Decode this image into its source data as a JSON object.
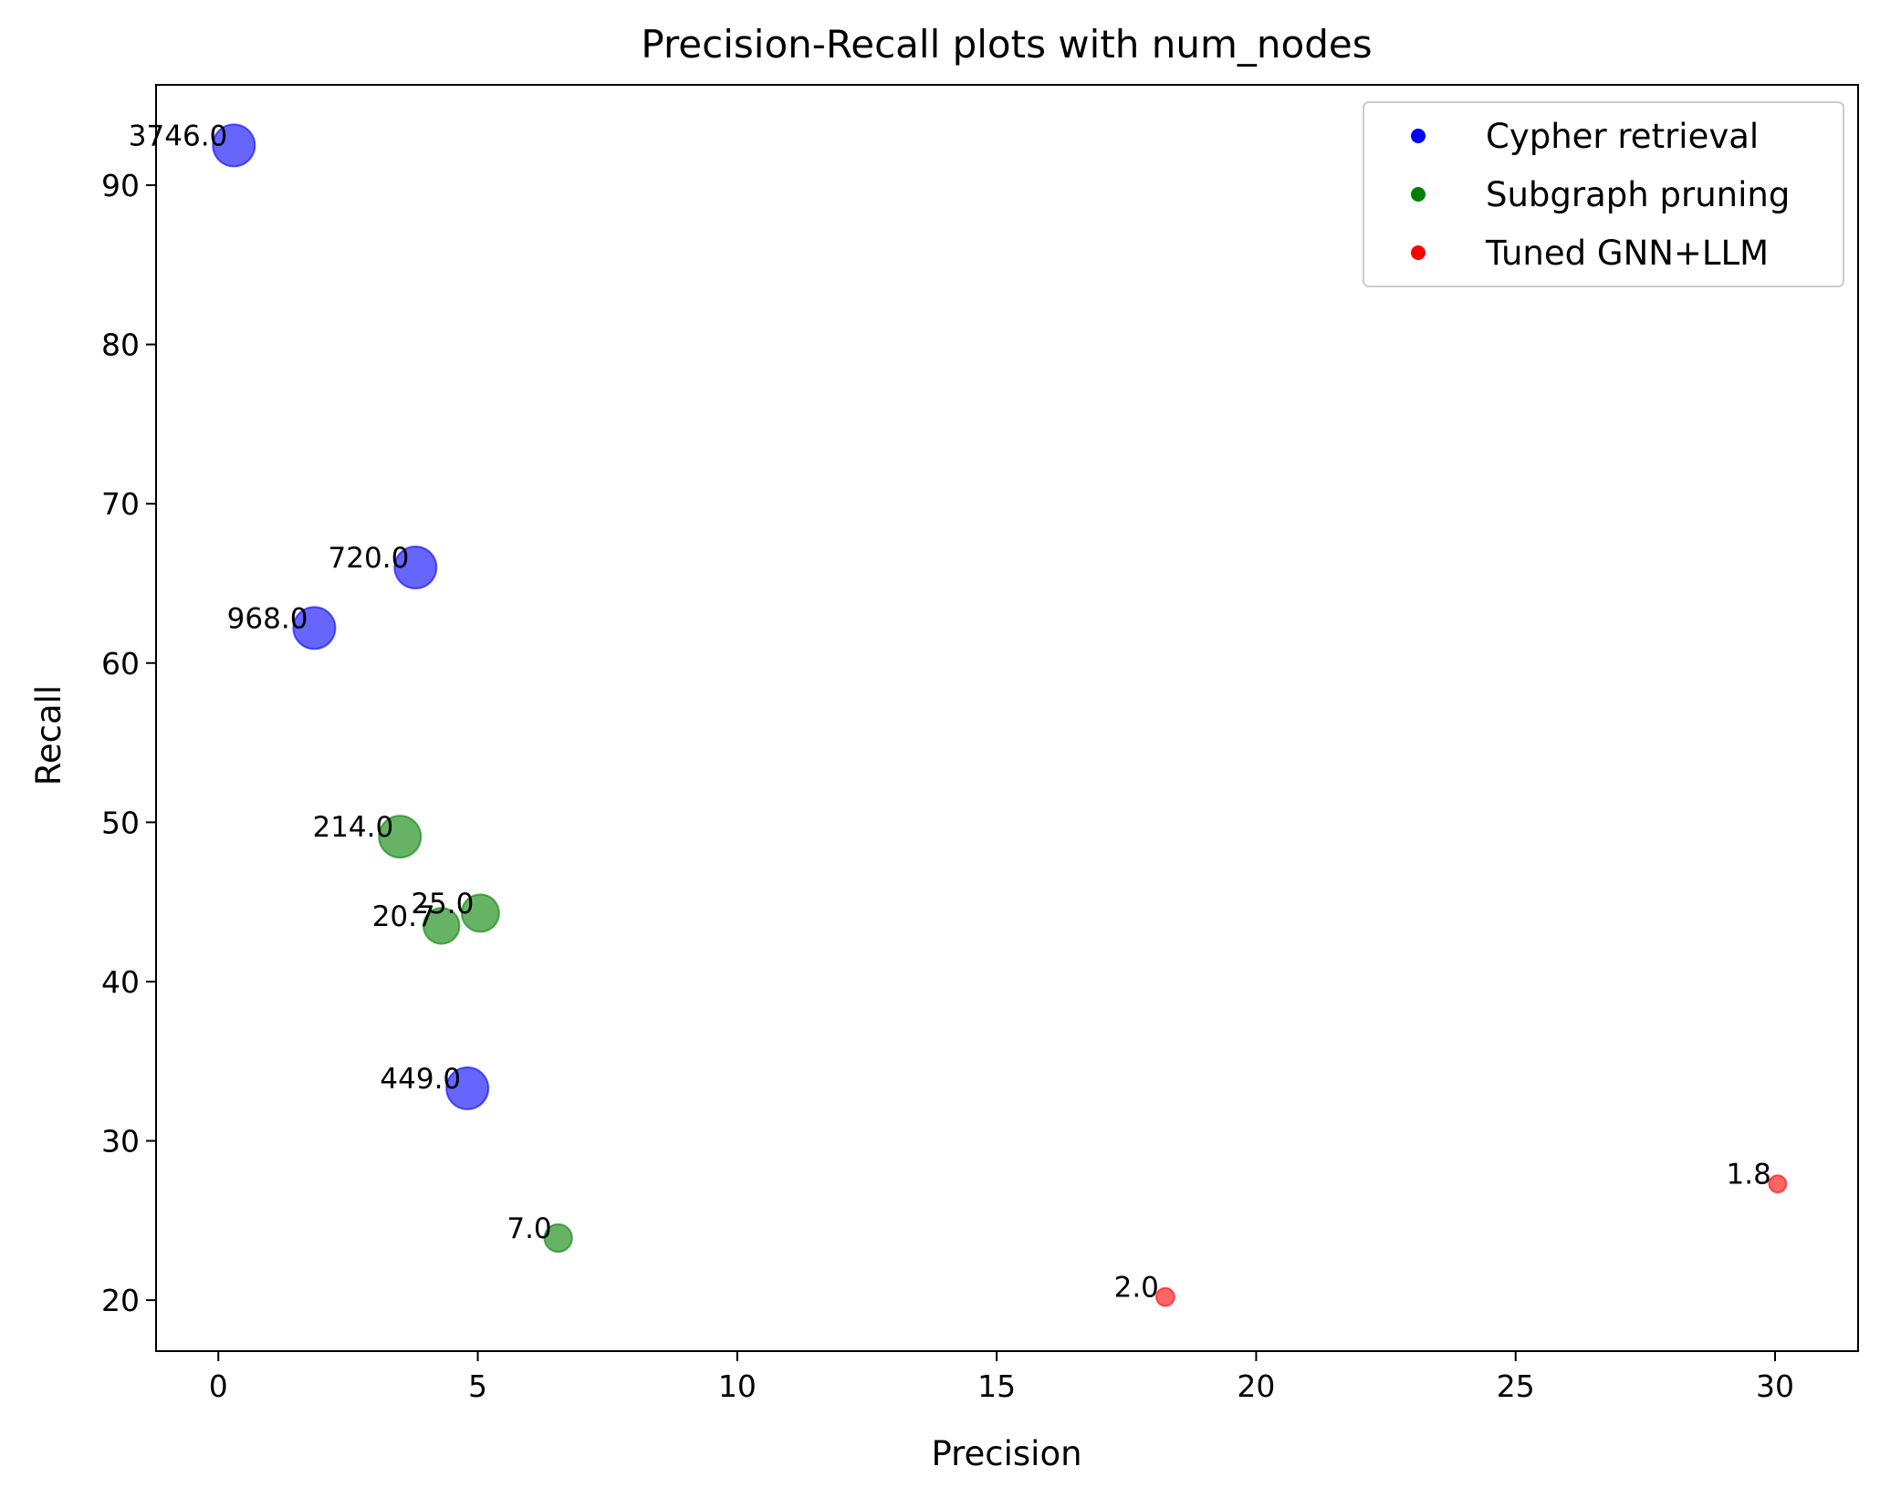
{
  "chart_data": {
    "type": "scatter",
    "title": "Precision-Recall plots with num_nodes",
    "xlabel": "Precision",
    "ylabel": "Recall",
    "xlim": [
      -1.2,
      31.6
    ],
    "ylim": [
      16.8,
      96.3
    ],
    "xticks": [
      0,
      5,
      10,
      15,
      20,
      25,
      30
    ],
    "yticks": [
      20,
      30,
      40,
      50,
      60,
      70,
      80,
      90
    ],
    "grid": false,
    "legend_position": "top-right",
    "series": [
      {
        "name": "Cypher retrieval",
        "color": "#0000ff",
        "points": [
          {
            "x": 0.3,
            "y": 92.5,
            "label": "3746.0"
          },
          {
            "x": 3.8,
            "y": 66.0,
            "label": "720.0"
          },
          {
            "x": 1.85,
            "y": 62.2,
            "label": "968.0"
          },
          {
            "x": 4.8,
            "y": 33.3,
            "label": "449.0"
          }
        ]
      },
      {
        "name": "Subgraph pruning",
        "color": "#008000",
        "points": [
          {
            "x": 3.5,
            "y": 49.1,
            "label": "214.0"
          },
          {
            "x": 5.05,
            "y": 44.3,
            "label": "25.0"
          },
          {
            "x": 4.3,
            "y": 43.5,
            "label": "20.7"
          },
          {
            "x": 6.55,
            "y": 23.9,
            "label": "7.0"
          }
        ]
      },
      {
        "name": "Tuned GNN+LLM",
        "color": "#ff0000",
        "points": [
          {
            "x": 30.05,
            "y": 27.3,
            "label": "1.8"
          },
          {
            "x": 18.25,
            "y": 20.2,
            "label": "2.0"
          }
        ]
      }
    ]
  }
}
